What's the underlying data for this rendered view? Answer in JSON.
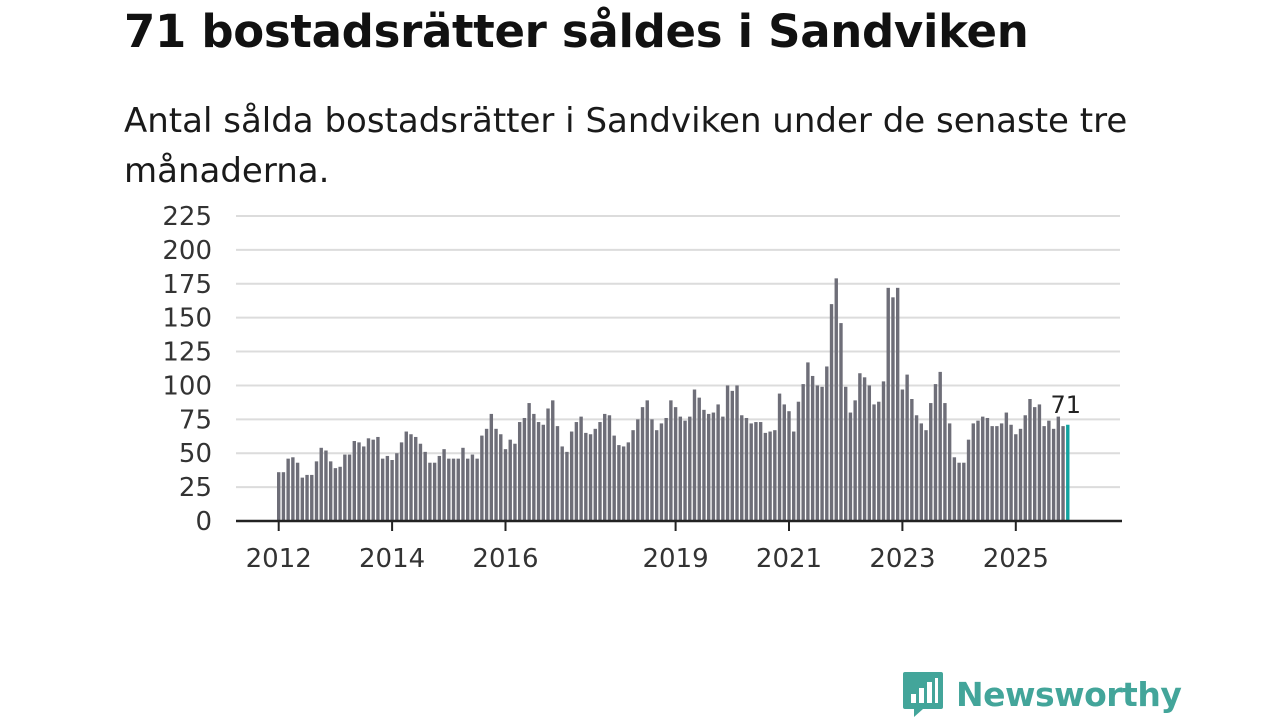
{
  "header": {
    "title": "71 bostadsrätter såldes i Sandviken",
    "subtitle": "Antal sålda bostadsrätter i Sandviken under de senaste tre månaderna."
  },
  "brand": {
    "name": "Newsworthy",
    "icon": "chat-bar-chart-icon",
    "color": "#43a59a"
  },
  "chart_data": {
    "type": "bar",
    "title": "",
    "xlabel": "",
    "ylabel": "",
    "ylim": [
      0,
      225
    ],
    "yticks": [
      "0",
      "25",
      "50",
      "75",
      "100",
      "125",
      "150",
      "175",
      "200",
      "225"
    ],
    "xticks": [
      {
        "label": "2012",
        "index": 0
      },
      {
        "label": "2014",
        "index": 24
      },
      {
        "label": "2016",
        "index": 48
      },
      {
        "label": "2019",
        "index": 84
      },
      {
        "label": "2021",
        "index": 108
      },
      {
        "label": "2023",
        "index": 132
      },
      {
        "label": "2025",
        "index": 156
      }
    ],
    "grid": true,
    "bar_color": "#6e6e78",
    "highlight_color": "#12a3a0",
    "highlight_label": "71",
    "values": [
      36,
      36,
      46,
      47,
      43,
      32,
      34,
      34,
      44,
      54,
      52,
      44,
      39,
      40,
      49,
      49,
      59,
      58,
      55,
      61,
      60,
      62,
      46,
      48,
      45,
      50,
      58,
      66,
      64,
      62,
      57,
      51,
      43,
      43,
      48,
      53,
      46,
      46,
      46,
      54,
      46,
      49,
      46,
      63,
      68,
      79,
      68,
      64,
      53,
      60,
      57,
      73,
      76,
      87,
      79,
      73,
      71,
      83,
      89,
      70,
      55,
      51,
      66,
      73,
      77,
      65,
      64,
      68,
      73,
      79,
      78,
      63,
      56,
      55,
      58,
      67,
      75,
      84,
      89,
      75,
      67,
      72,
      76,
      89,
      84,
      77,
      74,
      77,
      97,
      91,
      82,
      79,
      80,
      86,
      77,
      100,
      96,
      100,
      78,
      76,
      72,
      73,
      73,
      65,
      66,
      67,
      94,
      86,
      81,
      66,
      88,
      101,
      117,
      107,
      100,
      99,
      114,
      160,
      179,
      146,
      99,
      80,
      89,
      109,
      106,
      100,
      86,
      88,
      103,
      172,
      165,
      172,
      97,
      108,
      90,
      78,
      72,
      67,
      87,
      101,
      110,
      87,
      72,
      47,
      43,
      43,
      60,
      72,
      74,
      77,
      76,
      70,
      70,
      72,
      80,
      71,
      64,
      68,
      78,
      90,
      84,
      86,
      70,
      74,
      68,
      77,
      70,
      71
    ]
  }
}
